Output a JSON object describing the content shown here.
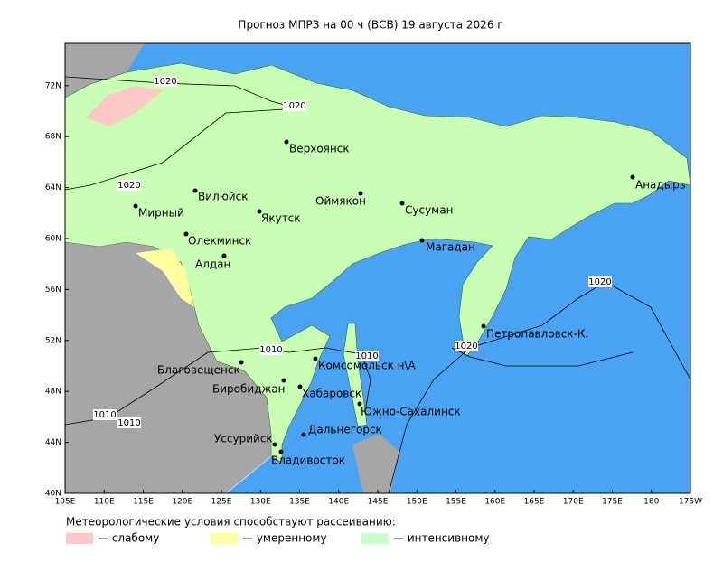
{
  "title": "Прогноз МПРЗ на 00 ч (ВСВ) 19 августа 2026 г",
  "axes": {
    "x_ticks": [
      "105E",
      "110E",
      "115E",
      "120E",
      "125E",
      "130E",
      "135E",
      "140E",
      "145E",
      "150E",
      "155E",
      "160E",
      "165E",
      "170E",
      "175E",
      "180",
      "175W"
    ],
    "y_ticks": [
      "40N",
      "44N",
      "48N",
      "52N",
      "56N",
      "60N",
      "64N",
      "68N",
      "72N"
    ]
  },
  "cities": [
    "Верхоянск",
    "Вилюйск",
    "Мирный",
    "Якутск",
    "Оймякон",
    "Сусуман",
    "Олекминск",
    "Алдан",
    "Магадан",
    "Анадырь",
    "Петропавловск-К.",
    "Комсомольск н\\А",
    "Благовещенск",
    "Биробиджан",
    "Хабаровск",
    "Южно-Сахалинск",
    "Дальнегорск",
    "Уссурийск",
    "Владивосток"
  ],
  "isobars": [
    "1020",
    "1020",
    "1020",
    "1020",
    "1020",
    "1010",
    "1010",
    "1010",
    "1010"
  ],
  "legend": {
    "title": "Метеорологические условия способствуют рассеиванию:",
    "items": [
      "— слабому",
      "— умеренному",
      "— интенсивному"
    ]
  }
}
